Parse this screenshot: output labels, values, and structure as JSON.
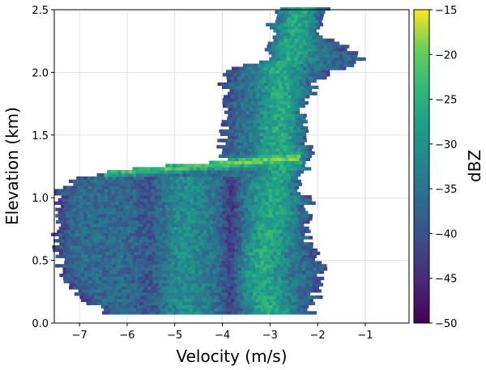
{
  "chart_data": {
    "type": "heatmap",
    "title": "",
    "xlabel": "Velocity (m/s)",
    "ylabel": "Elevation (km)",
    "xlim": [
      -7.53,
      -0.08
    ],
    "ylim": [
      0.0,
      2.5
    ],
    "xticks": [
      -7,
      -6,
      -5,
      -4,
      -3,
      -2,
      -1
    ],
    "xtick_labels": [
      "−7",
      "−6",
      "−5",
      "−4",
      "−3",
      "−2",
      "−1"
    ],
    "yticks": [
      0.0,
      0.5,
      1.0,
      1.5,
      2.0,
      2.5
    ],
    "ytick_labels": [
      "0.0",
      "0.5",
      "1.0",
      "1.5",
      "2.0",
      "2.5"
    ],
    "grid": true,
    "colorbar": {
      "label": "dBZ",
      "range": [
        -50,
        -15
      ],
      "ticks": [
        -50,
        -45,
        -40,
        -35,
        -30,
        -25,
        -20,
        -15
      ],
      "tick_labels": [
        "−50",
        "−45",
        "−40",
        "−35",
        "−30",
        "−25",
        "−20",
        "−15"
      ],
      "colormap": "viridis"
    },
    "spectrum_envelope": {
      "elevation_km": [
        0.07,
        0.15,
        0.3,
        0.45,
        0.6,
        0.8,
        1.0,
        1.05,
        1.15,
        1.22,
        1.28,
        1.35,
        1.5,
        1.7,
        1.9,
        2.0,
        2.1,
        2.3,
        2.5
      ],
      "v_min": [
        -6.4,
        -6.8,
        -7.3,
        -7.4,
        -7.5,
        -7.5,
        -7.5,
        -7.4,
        -7.0,
        -6.0,
        -4.0,
        -4.0,
        -4.0,
        -3.9,
        -4.0,
        -3.9,
        -3.0,
        -3.0,
        -2.9
      ],
      "v_max": [
        -2.2,
        -2.1,
        -2.0,
        -1.9,
        -2.2,
        -2.3,
        -2.2,
        -2.6,
        -2.3,
        -2.3,
        -2.2,
        -2.2,
        -2.3,
        -2.3,
        -2.1,
        -1.6,
        -1.1,
        -2.0,
        -1.9
      ],
      "peak_velocity": [
        -3.0,
        -3.1,
        -3.2,
        -3.2,
        -3.1,
        -3.0,
        -3.0,
        -3.0,
        -2.9,
        -2.8,
        -2.7,
        -2.8,
        -2.9,
        -2.8,
        -2.8,
        -2.9,
        -2.6,
        -2.6,
        -2.5
      ]
    },
    "bright_band": {
      "from": [
        -6.5,
        1.18
      ],
      "to": [
        -2.4,
        1.31
      ],
      "dBZ": -20
    }
  }
}
